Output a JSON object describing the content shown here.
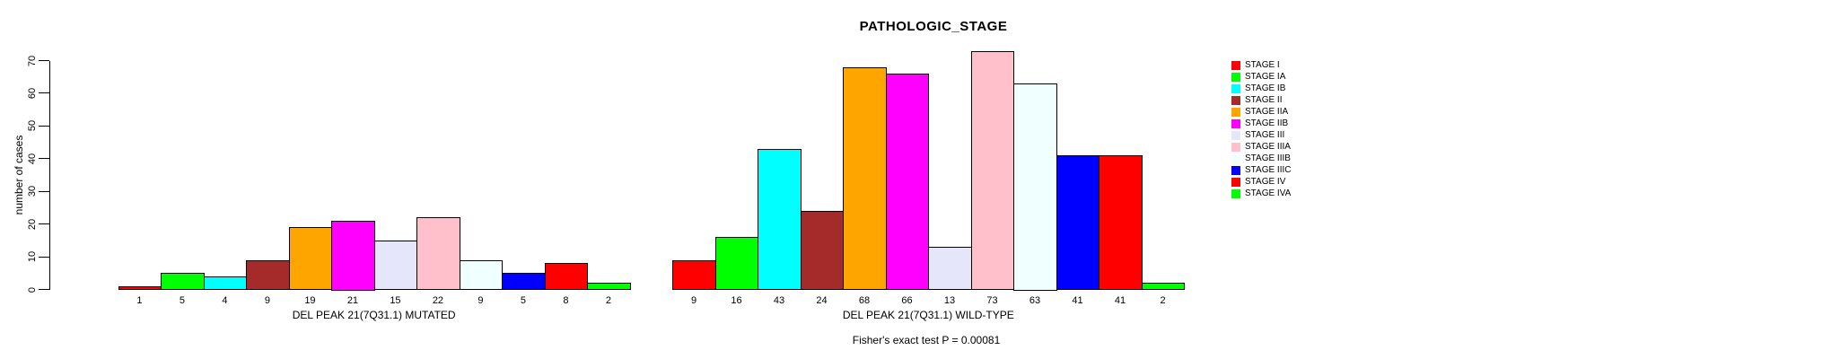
{
  "title": "PATHOLOGIC_STAGE",
  "footer_note": "Fisher's exact test P = 0.00081",
  "chart_data": {
    "type": "bar",
    "title": "PATHOLOGIC_STAGE",
    "xlabel": "",
    "ylabel": "number of cases",
    "ylim": [
      0,
      70
    ],
    "yticks": [
      0,
      10,
      20,
      30,
      40,
      50,
      60,
      70
    ],
    "grid": false,
    "legend_position": "right",
    "categories": [
      "STAGE I",
      "STAGE IA",
      "STAGE IB",
      "STAGE II",
      "STAGE IIA",
      "STAGE IIB",
      "STAGE III",
      "STAGE IIIA",
      "STAGE IIIB",
      "STAGE IIIC",
      "STAGE IV",
      "STAGE IVA"
    ],
    "colors": [
      "#FF0000",
      "#00FF00",
      "#00FFFF",
      "#A52A2A",
      "#FFA500",
      "#FF00FF",
      "#E6E6FA",
      "#FFC0CB",
      "#F0FFFF",
      "#0000FF",
      "#FF0000",
      "#00FF00"
    ],
    "groups": [
      {
        "label": "DEL PEAK 21(7Q31.1) MUTATED",
        "values": [
          1,
          5,
          4,
          9,
          19,
          21,
          15,
          22,
          9,
          5,
          8,
          2
        ]
      },
      {
        "label": "DEL PEAK 21(7Q31.1) WILD-TYPE",
        "values": [
          9,
          16,
          43,
          24,
          68,
          66,
          13,
          73,
          63,
          41,
          41,
          2
        ]
      }
    ],
    "annotation": "Fisher's exact test P = 0.00081"
  },
  "legend": {
    "items": [
      {
        "label": "STAGE I",
        "color": "#FF0000"
      },
      {
        "label": "STAGE IA",
        "color": "#00FF00"
      },
      {
        "label": "STAGE IB",
        "color": "#00FFFF"
      },
      {
        "label": "STAGE II",
        "color": "#A52A2A"
      },
      {
        "label": "STAGE IIA",
        "color": "#FFA500"
      },
      {
        "label": "STAGE IIB",
        "color": "#FF00FF"
      },
      {
        "label": "STAGE III",
        "color": "#E6E6FA"
      },
      {
        "label": "STAGE IIIA",
        "color": "#FFC0CB"
      },
      {
        "label": "STAGE IIIB",
        "color": "#F0FFFF"
      },
      {
        "label": "STAGE IIIC",
        "color": "#0000FF"
      },
      {
        "label": "STAGE IV",
        "color": "#FF0000"
      },
      {
        "label": "STAGE IVA",
        "color": "#00FF00"
      }
    ]
  }
}
